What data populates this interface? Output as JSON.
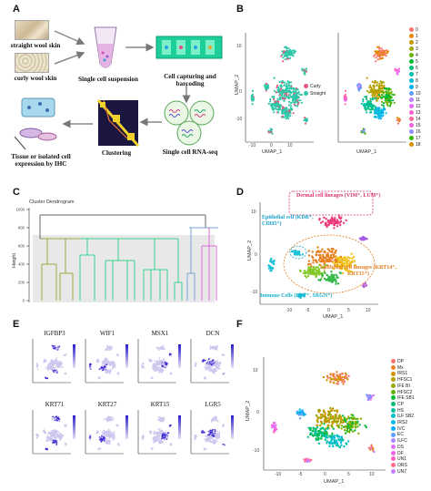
{
  "panels": {
    "A": {
      "letter": "A",
      "straight_label": "straight wool skin",
      "curly_label": "curly wool skin",
      "suspension": "Single cell suspension",
      "capture": "Cell capturing and barcoding",
      "rnaseq": "Single cell RNA-seq",
      "clustering": "Clustering",
      "tissue": "Tissue or isolated cell expression by IHC"
    },
    "B": {
      "letter": "B",
      "xlabel": "UMAP_1",
      "ylabel": "UMAP_2",
      "legend_left": [
        {
          "label": "Curly",
          "color": "#e8557c"
        },
        {
          "label": "Straight",
          "color": "#2ec7a8"
        }
      ],
      "yticks": [
        "10",
        "0",
        "-10"
      ],
      "xticks": [
        "-10",
        "0",
        "10"
      ],
      "cluster_legend": [
        {
          "label": "0",
          "color": "#f8766d"
        },
        {
          "label": "1",
          "color": "#e58700"
        },
        {
          "label": "2",
          "color": "#c99800"
        },
        {
          "label": "3",
          "color": "#a3a500"
        },
        {
          "label": "4",
          "color": "#6bb100"
        },
        {
          "label": "5",
          "color": "#00ba38"
        },
        {
          "label": "6",
          "color": "#00bf7d"
        },
        {
          "label": "7",
          "color": "#00c0af"
        },
        {
          "label": "8",
          "color": "#00bcd8"
        },
        {
          "label": "9",
          "color": "#00b0f6"
        },
        {
          "label": "10",
          "color": "#619cff"
        },
        {
          "label": "11",
          "color": "#b983ff"
        },
        {
          "label": "12",
          "color": "#e76bf3"
        },
        {
          "label": "13",
          "color": "#fd61d1"
        },
        {
          "label": "14",
          "color": "#ff67a4"
        },
        {
          "label": "15",
          "color": "#f564e3"
        },
        {
          "label": "16",
          "color": "#9590ff"
        },
        {
          "label": "17",
          "color": "#39b600"
        },
        {
          "label": "18",
          "color": "#d89000"
        }
      ]
    },
    "C": {
      "letter": "C",
      "title": "Cluster Dendrogram",
      "ylabel": "Height",
      "yticks": [
        "1000",
        "800",
        "600",
        "400",
        "200",
        "0"
      ]
    },
    "D": {
      "letter": "D",
      "xlabel": "UMAP_1",
      "ylabel": "UMAP_2",
      "dermal": "Dermal cell lineages (VIM⁺, LUM⁺)",
      "endo": "Epithelial cell (KDR⁺, CDH5⁺)",
      "epi": "Epithelial cell lineages (KRT14⁺, KRT15⁺)",
      "immune": "Immune Cells (RFT⁺, SRGN⁺)",
      "xticks": [
        "-10",
        "-5",
        "0",
        "5",
        "10"
      ],
      "yticks": [
        "10",
        "0",
        "-10"
      ]
    },
    "E": {
      "letter": "E",
      "genes": [
        "IGFBP3",
        "WIF1",
        "MSX1",
        "DCN",
        "KRT71",
        "KRT27",
        "KRT15",
        "LGR5"
      ]
    },
    "F": {
      "letter": "F",
      "xlabel": "UMAP_1",
      "ylabel": "UMAP_2",
      "xticks": [
        "-10",
        "-5",
        "0",
        "5",
        "10"
      ],
      "yticks": [
        "10",
        "0",
        "-10"
      ],
      "legend": [
        {
          "label": "DP",
          "color": "#f8766d"
        },
        {
          "label": "Mx",
          "color": "#e88526"
        },
        {
          "label": "IRS1",
          "color": "#d39200"
        },
        {
          "label": "HFSC1",
          "color": "#b79f00"
        },
        {
          "label": "IFE BI",
          "color": "#93aa00"
        },
        {
          "label": "HFSC2",
          "color": "#5eb300"
        },
        {
          "label": "IFE SB1",
          "color": "#00ba38"
        },
        {
          "label": "CP",
          "color": "#00bf74"
        },
        {
          "label": "HS",
          "color": "#00c19f"
        },
        {
          "label": "ILF SB2",
          "color": "#00bfc4"
        },
        {
          "label": "IRS2",
          "color": "#00b9e3"
        },
        {
          "label": "IVC",
          "color": "#00adfa"
        },
        {
          "label": "EC",
          "color": "#619cff"
        },
        {
          "label": "ILFC",
          "color": "#ae87ff"
        },
        {
          "label": "DS",
          "color": "#db72fb"
        },
        {
          "label": "DF",
          "color": "#f564e3"
        },
        {
          "label": "UN1",
          "color": "#ff61c3"
        },
        {
          "label": "ORS",
          "color": "#ff6c91"
        },
        {
          "label": "UN7",
          "color": "#c77cff"
        }
      ]
    }
  }
}
